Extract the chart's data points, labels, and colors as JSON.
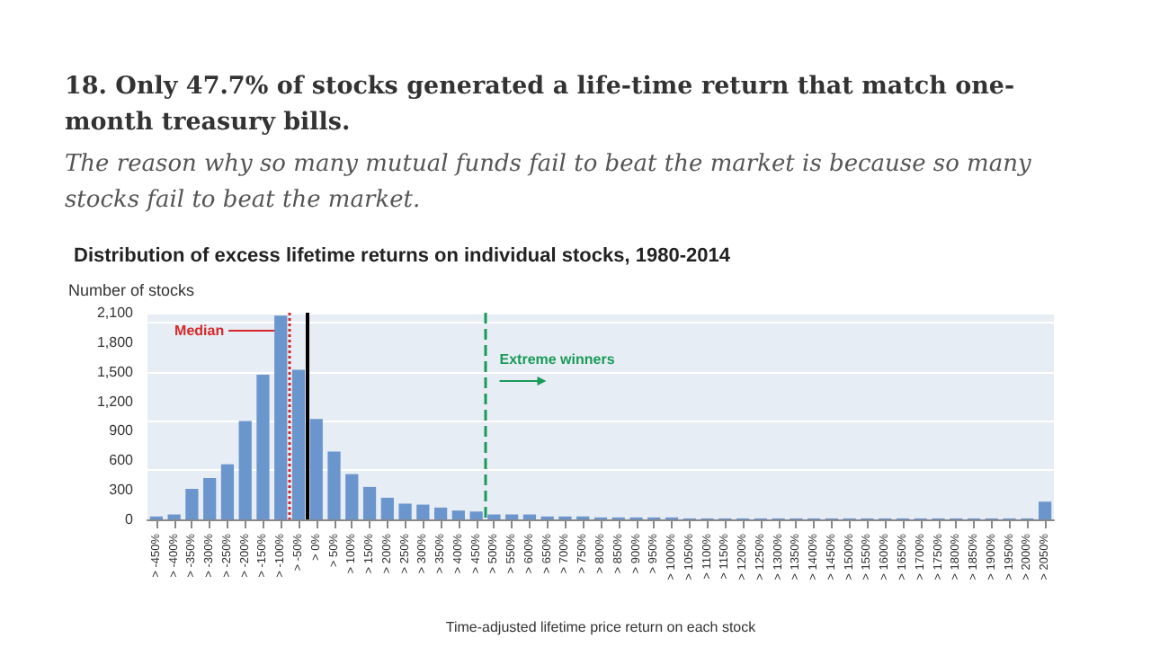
{
  "chart_data": {
    "type": "bar",
    "title": "18. Only 47.7% of stocks generated a life-time return that match one-month treasury bills.",
    "subtitle": "The reason why so many mutual funds fail to beat the market is because so many stocks fail to beat the market.",
    "annotations": [
      "Distribution of excess lifetime returns on individual stocks, 1980-2014"
    ],
    "xlabel": "Time-adjusted lifetime price return on each stock",
    "ylabel": "Number of stocks",
    "categories": [
      "> -450%",
      "> -400%",
      "> -350%",
      "> -300%",
      "> -250%",
      "> -200%",
      "> -150%",
      "> -100%",
      "> -50%",
      "> 0%",
      "> 50%",
      "> 100%",
      "> 150%",
      "> 200%",
      "> 250%",
      "> 300%",
      "> 350%",
      "> 400%",
      "> 450%",
      "> 500%",
      "> 550%",
      "> 600%",
      "> 650%",
      "> 700%",
      "> 750%",
      "> 800%",
      "> 850%",
      "> 900%",
      "> 950%",
      "> 1000%",
      "> 1050%",
      "> 1100%",
      "> 1150%",
      "> 1200%",
      "> 1250%",
      "> 1300%",
      "> 1350%",
      "> 1400%",
      "> 1450%",
      "> 1500%",
      "> 1550%",
      "> 1600%",
      "> 1650%",
      "> 1700%",
      "> 1750%",
      "> 1800%",
      "> 1850%",
      "> 1900%",
      "> 1950%",
      "> 2000%",
      "> 2050%"
    ],
    "values": [
      30,
      50,
      310,
      420,
      560,
      1000,
      1470,
      2070,
      1520,
      1020,
      690,
      460,
      330,
      220,
      160,
      150,
      120,
      90,
      80,
      50,
      50,
      50,
      30,
      30,
      30,
      20,
      20,
      20,
      20,
      20,
      10,
      10,
      10,
      10,
      10,
      10,
      10,
      10,
      10,
      10,
      10,
      10,
      10,
      10,
      10,
      10,
      10,
      10,
      10,
      10,
      180
    ],
    "color": "#6a95cd",
    "ylim": [
      0,
      2100
    ],
    "yticks": [
      {
        "value": 0,
        "label": "0"
      },
      {
        "value": 300,
        "label": "300"
      },
      {
        "value": 600,
        "label": "600"
      },
      {
        "value": 900,
        "label": "900"
      },
      {
        "value": 1200,
        "label": "1,200"
      },
      {
        "value": 1500,
        "label": "1,500"
      },
      {
        "value": 1800,
        "label": "1,800"
      },
      {
        "value": 2100,
        "label": "2,100"
      }
    ],
    "grid": "y",
    "ref_lines": [
      {
        "axis": "x",
        "value": "> -100%",
        "label": "Median",
        "color": "#d62728",
        "line_style": "dotted"
      },
      {
        "axis": "x",
        "value": "> -50%",
        "label": null,
        "color": "#000000",
        "line_style": "solid"
      },
      {
        "axis": "x",
        "value": "> 450%",
        "label": "Extreme winners",
        "color": "#1a9a5a",
        "line_style": "dashed"
      }
    ]
  }
}
